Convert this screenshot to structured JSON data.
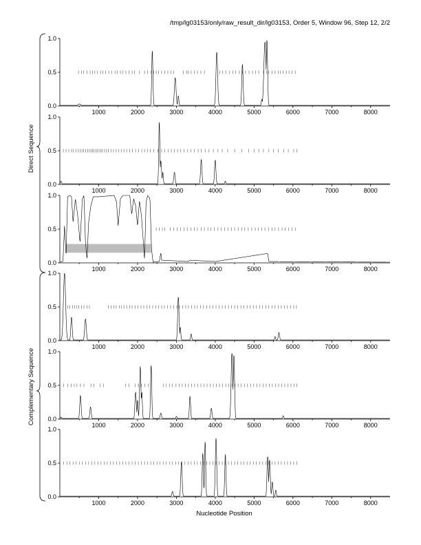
{
  "title": "/tmp/lg03153/only/raw_result_dir/lg03153, Order 5, Window 96, Step 12, 2/2",
  "xlabel": "Nucleotide Position",
  "group_labels": [
    "Direct Sequence",
    "Complementary Sequence"
  ],
  "colors": {
    "trace": "#000000",
    "marker": "#555555",
    "band": "#bdbdbd"
  },
  "chart_data": [
    {
      "type": "line",
      "strand": "direct",
      "frame": 1,
      "xlim": [
        0,
        8500
      ],
      "ylim": [
        0,
        1
      ],
      "x_ticks": [
        1000,
        2000,
        3000,
        4000,
        5000,
        6000,
        7000,
        8000
      ],
      "y_ticks": [
        0.0,
        0.5,
        1.0
      ],
      "x_tick_labels": [
        "1000",
        "2000",
        "3000",
        "4000",
        "5000",
        "6000",
        "7000",
        "8000"
      ],
      "y_tick_labels": [
        "0.0",
        "0.5",
        "1.0"
      ],
      "baseline": 0.01,
      "peaks": [
        [
          500,
          0.03,
          50
        ],
        [
          2380,
          0.82,
          22
        ],
        [
          2970,
          0.42,
          30
        ],
        [
          3050,
          0.15,
          20
        ],
        [
          4040,
          0.8,
          30
        ],
        [
          4700,
          0.62,
          25
        ],
        [
          5280,
          0.95,
          40
        ],
        [
          5330,
          0.98,
          25
        ],
        [
          5200,
          0.1,
          20
        ]
      ],
      "markers": [
        480,
        560,
        610,
        700,
        780,
        840,
        900,
        970,
        1050,
        1110,
        1180,
        1260,
        1330,
        1420,
        1480,
        1560,
        1620,
        1700,
        1780,
        1860,
        1920,
        2050,
        2180,
        2260,
        2340,
        2420,
        2480,
        2540,
        2620,
        2700,
        2780,
        2860,
        2930,
        3180,
        3260,
        3300,
        3380,
        3460,
        3540,
        3630,
        3720,
        4120,
        4190,
        4270,
        4360,
        4450,
        4520,
        4620,
        4700,
        4780,
        4870,
        4960,
        5040,
        5120,
        5240,
        5320,
        5380,
        5460,
        5540,
        5620,
        5680,
        5750,
        5830,
        5900,
        5980,
        6060
      ]
    },
    {
      "type": "line",
      "strand": "direct",
      "frame": 2,
      "xlim": [
        0,
        8500
      ],
      "ylim": [
        0,
        1
      ],
      "x_ticks": [
        1000,
        2000,
        3000,
        4000,
        5000,
        6000,
        7000,
        8000
      ],
      "y_ticks": [
        0.0,
        0.5,
        1.0
      ],
      "x_tick_labels": [
        "1000",
        "2000",
        "3000",
        "4000",
        "5000",
        "6000",
        "7000",
        "8000"
      ],
      "y_tick_labels": [
        "0.0",
        "0.5",
        "1.0"
      ],
      "baseline": 0.01,
      "peaks": [
        [
          30,
          0.05,
          20
        ],
        [
          2560,
          0.93,
          20
        ],
        [
          2600,
          0.35,
          25
        ],
        [
          2650,
          0.18,
          20
        ],
        [
          2950,
          0.18,
          25
        ],
        [
          3640,
          0.37,
          25
        ],
        [
          4000,
          0.36,
          25
        ],
        [
          4260,
          0.05,
          20
        ]
      ],
      "markers": [
        90,
        160,
        230,
        300,
        340,
        410,
        470,
        520,
        570,
        610,
        660,
        720,
        760,
        800,
        840,
        880,
        930,
        970,
        1010,
        1050,
        1090,
        1150,
        1200,
        1250,
        1320,
        1380,
        1450,
        1510,
        1580,
        1650,
        1720,
        1800,
        1870,
        1950,
        2030,
        2110,
        2180,
        2260,
        2330,
        2420,
        2520,
        2620,
        2700,
        2790,
        2870,
        2950,
        3030,
        3110,
        3200,
        3290,
        3370,
        3460,
        3560,
        3640,
        3740,
        3840,
        3950,
        4070,
        4180,
        4320,
        4500,
        4680,
        4860,
        5000,
        5120,
        5240,
        5380,
        5500,
        5620,
        5760,
        5880,
        6020,
        6100
      ]
    },
    {
      "type": "line",
      "strand": "direct",
      "frame": 3,
      "xlim": [
        0,
        8500
      ],
      "ylim": [
        0,
        1
      ],
      "x_ticks": [
        1000,
        2000,
        3000,
        4000,
        5000,
        6000,
        7000,
        8000
      ],
      "y_ticks": [
        0.0,
        0.5,
        1.0
      ],
      "x_tick_labels": [
        "1000",
        "2000",
        "3000",
        "4000",
        "5000",
        "6000",
        "7000",
        "8000"
      ],
      "y_tick_labels": [
        "0.0",
        "0.5",
        "1.0"
      ],
      "baseline": 0.01,
      "plateau_profile": [
        [
          0,
          0.01
        ],
        [
          80,
          0.02
        ],
        [
          120,
          0.55
        ],
        [
          160,
          0.1
        ],
        [
          200,
          0.98
        ],
        [
          260,
          1.0
        ],
        [
          300,
          0.98
        ],
        [
          340,
          0.6
        ],
        [
          400,
          0.95
        ],
        [
          460,
          0.7
        ],
        [
          520,
          0.3
        ],
        [
          580,
          0.95
        ],
        [
          620,
          1.0
        ],
        [
          660,
          0.3
        ],
        [
          700,
          0.05
        ],
        [
          740,
          0.6
        ],
        [
          800,
          0.85
        ],
        [
          860,
          0.98
        ],
        [
          1000,
          0.98
        ],
        [
          1200,
          0.99
        ],
        [
          1400,
          1.0
        ],
        [
          1460,
          0.9
        ],
        [
          1500,
          0.55
        ],
        [
          1560,
          0.95
        ],
        [
          1620,
          1.0
        ],
        [
          1800,
          1.0
        ],
        [
          1850,
          0.72
        ],
        [
          1900,
          0.95
        ],
        [
          1950,
          0.85
        ],
        [
          2000,
          0.55
        ],
        [
          2050,
          0.92
        ],
        [
          2100,
          0.7
        ],
        [
          2150,
          0.3
        ],
        [
          2180,
          0.05
        ],
        [
          2220,
          0.9
        ],
        [
          2260,
          1.0
        ],
        [
          2320,
          0.95
        ],
        [
          2360,
          0.2
        ],
        [
          2400,
          0.01
        ],
        [
          2560,
          0.02
        ],
        [
          2600,
          0.15
        ],
        [
          2620,
          0.04
        ],
        [
          3300,
          0.02
        ],
        [
          3350,
          0.04
        ],
        [
          4000,
          0.02
        ],
        [
          5350,
          0.14
        ],
        [
          5380,
          0.02
        ],
        [
          8500,
          0.01
        ]
      ],
      "band": {
        "x_start": 160,
        "x_end": 2350,
        "y_low": 0.15,
        "y_high": 0.28
      },
      "markers": [
        2480,
        2560,
        2640,
        2700,
        2840,
        2930,
        3020,
        3110,
        3200,
        3280,
        3370,
        3460,
        3540,
        3640,
        3720,
        3810,
        3890,
        3980,
        4070,
        4150,
        4240,
        4330,
        4420,
        4500,
        4590,
        4680,
        4760,
        4850,
        4940,
        5030,
        5110,
        5200,
        5280,
        5370,
        5460,
        5540,
        5630,
        5720,
        5800,
        5890,
        5980,
        6060
      ]
    },
    {
      "type": "line",
      "strand": "complementary",
      "frame": 1,
      "xlim": [
        0,
        8500
      ],
      "ylim": [
        0,
        1
      ],
      "x_ticks": [
        1000,
        2000,
        3000,
        4000,
        5000,
        6000,
        7000,
        8000
      ],
      "y_ticks": [
        0.0,
        0.5,
        1.0
      ],
      "x_tick_labels": [
        "1000",
        "2000",
        "3000",
        "4000",
        "5000",
        "6000",
        "7000",
        "8000"
      ],
      "y_tick_labels": [
        "0.0",
        "0.5",
        "1.0"
      ],
      "baseline": 0.01,
      "peaks": [
        [
          120,
          1.0,
          40
        ],
        [
          300,
          0.35,
          25
        ],
        [
          660,
          0.32,
          30
        ],
        [
          3050,
          0.65,
          25
        ],
        [
          3100,
          0.2,
          20
        ],
        [
          3380,
          0.1,
          20
        ],
        [
          5540,
          0.06,
          20
        ],
        [
          5640,
          0.12,
          25
        ]
      ],
      "markers": [
        200,
        260,
        330,
        380,
        440,
        490,
        560,
        620,
        700,
        760,
        1250,
        1320,
        1390,
        1450,
        1530,
        1590,
        1650,
        1720,
        1800,
        1860,
        1940,
        2010,
        2090,
        2160,
        2240,
        2310,
        2390,
        2470,
        2540,
        2620,
        2690,
        2770,
        2850,
        2930,
        3010,
        3080,
        3160,
        3240,
        3310,
        3390,
        3470,
        3540,
        3620,
        3700,
        3780,
        3860,
        3940,
        4020,
        4100,
        4180,
        4260,
        4340,
        4420,
        4500,
        4580,
        4660,
        4740,
        4820,
        4900,
        4980,
        5060,
        5140,
        5220,
        5300,
        5380,
        5460,
        5540,
        5620,
        5700,
        5780,
        5860,
        5940,
        6020,
        6090
      ]
    },
    {
      "type": "line",
      "strand": "complementary",
      "frame": 2,
      "xlim": [
        0,
        8500
      ],
      "ylim": [
        0,
        1
      ],
      "x_ticks": [
        1000,
        2000,
        3000,
        4000,
        5000,
        6000,
        7000,
        8000
      ],
      "y_ticks": [
        0.0,
        0.5,
        1.0
      ],
      "x_tick_labels": [
        "1000",
        "2000",
        "3000",
        "4000",
        "5000",
        "6000",
        "7000",
        "8000"
      ],
      "y_tick_labels": [
        "0.0",
        "0.5",
        "1.0"
      ],
      "baseline": 0.01,
      "peaks": [
        [
          30,
          0.03,
          20
        ],
        [
          530,
          0.35,
          25
        ],
        [
          790,
          0.18,
          25
        ],
        [
          1950,
          0.4,
          25
        ],
        [
          2000,
          0.28,
          20
        ],
        [
          2070,
          0.78,
          25
        ],
        [
          2110,
          0.4,
          20
        ],
        [
          2350,
          0.8,
          22
        ],
        [
          2600,
          0.09,
          25
        ],
        [
          3000,
          0.04,
          20
        ],
        [
          3350,
          0.34,
          22
        ],
        [
          3900,
          0.16,
          25
        ],
        [
          4430,
          0.98,
          30
        ],
        [
          4480,
          0.95,
          25
        ],
        [
          5750,
          0.05,
          20
        ]
      ],
      "markers": [
        100,
        200,
        290,
        370,
        440,
        530,
        620,
        800,
        880,
        1040,
        1120,
        1690,
        1780,
        1940,
        2020,
        2100,
        2190,
        2280,
        2660,
        2740,
        2820,
        2900,
        2990,
        3070,
        3150,
        3230,
        3310,
        3390,
        3470,
        3550,
        3630,
        3710,
        3790,
        3870,
        3950,
        4030,
        4110,
        4190,
        4270,
        4350,
        4430,
        4510,
        4590,
        4670,
        4750,
        4830,
        4910,
        4990,
        5070,
        5150,
        5230,
        5310,
        5390,
        5470,
        5550,
        5630,
        5710,
        5790,
        5870,
        5950,
        6030,
        6100
      ]
    },
    {
      "type": "line",
      "strand": "complementary",
      "frame": 3,
      "xlim": [
        0,
        8500
      ],
      "ylim": [
        0,
        1
      ],
      "x_ticks": [
        1000,
        2000,
        3000,
        4000,
        5000,
        6000,
        7000,
        8000
      ],
      "y_ticks": [
        0.0,
        0.5,
        1.0
      ],
      "x_tick_labels": [
        "1000",
        "2000",
        "3000",
        "4000",
        "5000",
        "6000",
        "7000",
        "8000"
      ],
      "y_tick_labels": [
        "0.0",
        "0.5",
        "1.0"
      ],
      "baseline": 0.01,
      "peaks": [
        [
          2900,
          0.08,
          25
        ],
        [
          3130,
          0.52,
          25
        ],
        [
          3680,
          0.65,
          22
        ],
        [
          3740,
          0.82,
          20
        ],
        [
          4020,
          0.87,
          25
        ],
        [
          4260,
          0.63,
          22
        ],
        [
          5350,
          0.6,
          25
        ],
        [
          5400,
          0.55,
          25
        ],
        [
          5470,
          0.22,
          22
        ],
        [
          5560,
          0.1,
          20
        ]
      ],
      "markers": [
        100,
        180,
        260,
        340,
        420,
        500,
        580,
        660,
        740,
        820,
        900,
        980,
        1060,
        1140,
        1220,
        1300,
        1380,
        1460,
        1540,
        1620,
        1700,
        1780,
        1860,
        1940,
        2020,
        2100,
        2180,
        2260,
        2340,
        2420,
        2500,
        2580,
        2660,
        2740,
        2820,
        2900,
        2980,
        3060,
        3140,
        3220,
        3300,
        3380,
        3460,
        3540,
        3620,
        3700,
        3780,
        3860,
        3940,
        4020,
        4100,
        4180,
        4260,
        4340,
        4420,
        4500,
        4580,
        4660,
        4740,
        4820,
        4900,
        4980,
        5060,
        5140,
        5220,
        5300,
        5380,
        5460,
        5540,
        5620,
        5700,
        5780,
        5860,
        5940,
        6020,
        6100
      ]
    }
  ]
}
